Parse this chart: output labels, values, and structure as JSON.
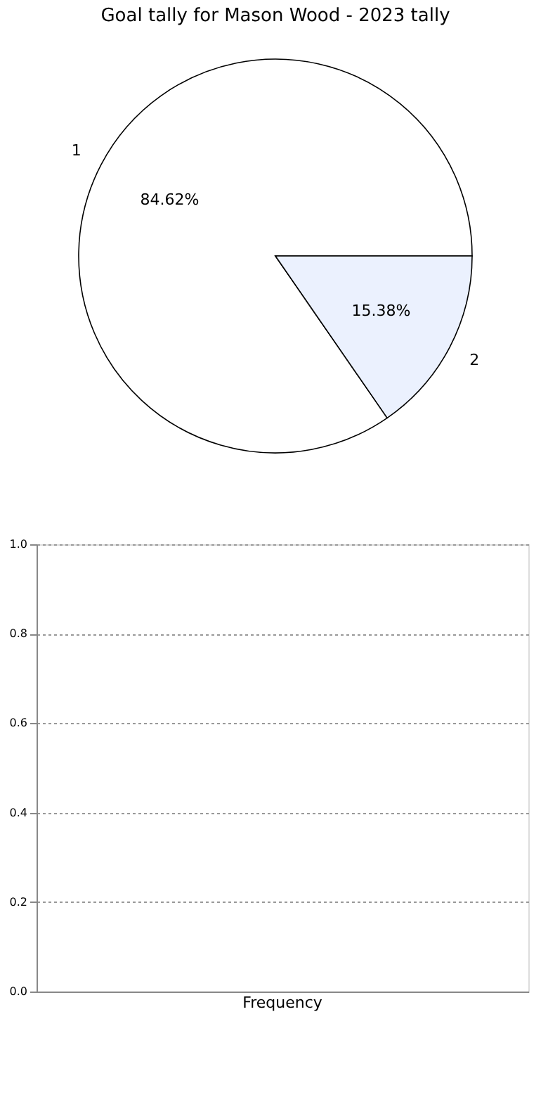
{
  "chart_data": [
    {
      "type": "pie",
      "title": "Goal tally for Mason Wood - 2023 tally",
      "categories": [
        "1",
        "2"
      ],
      "values": [
        84.62,
        15.38
      ],
      "colors": [
        "#ffffff",
        "#ebf1fe"
      ],
      "value_labels": [
        "84.62%",
        "15.38%"
      ]
    },
    {
      "type": "bar",
      "categories": [
        "Frequency"
      ],
      "values": [
        0
      ],
      "ylim": [
        0,
        1
      ],
      "yticks": [
        {
          "value": 0,
          "label": "0.0"
        },
        {
          "value": 0.2,
          "label": "0.2"
        },
        {
          "value": 0.4,
          "label": "0.4"
        },
        {
          "value": 0.6,
          "label": "0.6"
        },
        {
          "value": 0.8,
          "label": "0.8"
        },
        {
          "value": 1,
          "label": "1.0"
        }
      ],
      "grid": "y"
    }
  ]
}
